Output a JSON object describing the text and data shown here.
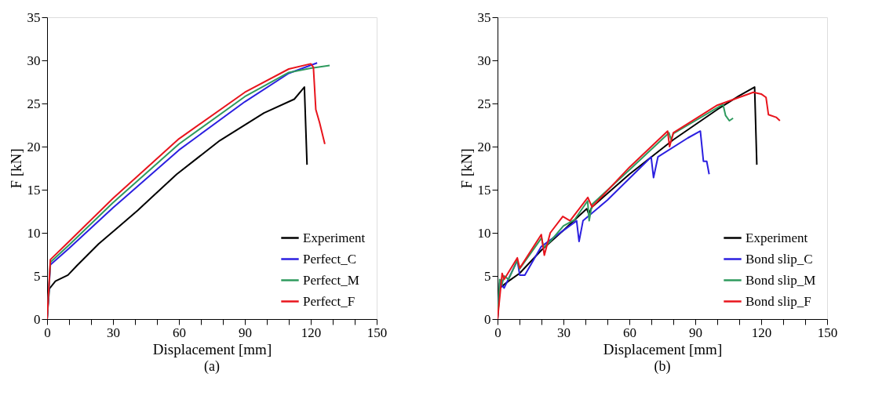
{
  "chart_data": [
    {
      "type": "line",
      "xlabel": "Displacement [mm]",
      "ylabel": "F [kN]",
      "annotations": [
        "(a)"
      ],
      "xlim": [
        0,
        150
      ],
      "ylim": [
        0,
        35
      ],
      "xticks": [
        0,
        {
          "value": 10,
          "label": null
        },
        {
          "value": 20,
          "label": null
        },
        30,
        {
          "value": 40,
          "label": null
        },
        {
          "value": 50,
          "label": null
        },
        60,
        {
          "value": 70,
          "label": null
        },
        {
          "value": 80,
          "label": null
        },
        90,
        {
          "value": 100,
          "label": null
        },
        {
          "value": 110,
          "label": null
        },
        120,
        {
          "value": 130,
          "label": null
        },
        {
          "value": 140,
          "label": null
        },
        150
      ],
      "yticks": [
        0,
        5,
        10,
        15,
        20,
        25,
        30,
        35
      ],
      "grid": false,
      "legend": "bottom right",
      "line_style": "solid",
      "marker": "none",
      "series": [
        {
          "name": "Experiment",
          "color": "#000000",
          "x": [
            0,
            1,
            3.8,
            9.5,
            13.6,
            23.4,
            32.6,
            41.2,
            59,
            78.6,
            98.7,
            112.5,
            117.1,
            118.3
          ],
          "values": [
            0,
            3.5,
            4.4,
            5.1,
            6.2,
            8.7,
            10.7,
            12.6,
            16.8,
            20.7,
            23.9,
            25.5,
            26.9,
            17.9
          ]
        },
        {
          "name": "Perfect_C",
          "color": "#2b1fe0",
          "x": [
            0,
            1.5,
            10,
            30,
            60,
            90,
            110,
            122.9
          ],
          "values": [
            0,
            6.3,
            8.2,
            12.9,
            19.6,
            25.2,
            28.5,
            29.7
          ]
        },
        {
          "name": "Perfect_M",
          "color": "#2e9a5e",
          "x": [
            0,
            1.5,
            10,
            30,
            60,
            90,
            110,
            120,
            128.6
          ],
          "values": [
            0,
            6.6,
            8.6,
            13.5,
            20.3,
            25.8,
            28.6,
            29.1,
            29.4
          ]
        },
        {
          "name": "Perfect_F",
          "color": "#e8141c",
          "x": [
            0,
            1.5,
            10,
            30,
            60,
            90,
            110,
            120,
            121.2,
            122.3,
            124,
            126.4
          ],
          "values": [
            0,
            6.9,
            9.0,
            14.0,
            20.9,
            26.3,
            29.0,
            29.6,
            29.2,
            24.3,
            22.8,
            20.3
          ]
        }
      ]
    },
    {
      "type": "line",
      "xlabel": "Displacement [mm]",
      "ylabel": "F [kN]",
      "annotations": [
        "(b)"
      ],
      "xlim": [
        0,
        150
      ],
      "ylim": [
        0,
        35
      ],
      "xticks": [
        0,
        {
          "value": 10,
          "label": null
        },
        {
          "value": 20,
          "label": null
        },
        30,
        {
          "value": 40,
          "label": null
        },
        {
          "value": 50,
          "label": null
        },
        60,
        {
          "value": 70,
          "label": null
        },
        {
          "value": 80,
          "label": null
        },
        90,
        {
          "value": 100,
          "label": null
        },
        {
          "value": 110,
          "label": null
        },
        120,
        {
          "value": 130,
          "label": null
        },
        {
          "value": 140,
          "label": null
        },
        150
      ],
      "yticks": [
        0,
        5,
        10,
        15,
        20,
        25,
        30,
        35
      ],
      "grid": false,
      "legend": "bottom right",
      "line_style": "solid",
      "marker": "none",
      "series": [
        {
          "name": "Experiment",
          "color": "#000000",
          "x": [
            0,
            1,
            5,
            10,
            20,
            30,
            40.6,
            41.5,
            43,
            60,
            80,
            100,
            110,
            117,
            118
          ],
          "values": [
            0,
            3.6,
            4.4,
            5.3,
            8.0,
            10.3,
            12.8,
            12.2,
            13.0,
            16.8,
            20.8,
            24.3,
            25.9,
            26.9,
            17.9
          ]
        },
        {
          "name": "Bond slip_C",
          "color": "#2b1fe0",
          "x": [
            0,
            1,
            3,
            9,
            10.1,
            12.4,
            19.9,
            36,
            37.1,
            38.9,
            50,
            69.9,
            71,
            73,
            86.6,
            92.3,
            93.7,
            95.2,
            96.3
          ],
          "values": [
            0,
            4.2,
            3.6,
            6.8,
            5.1,
            5.1,
            8.4,
            11.4,
            9.0,
            11.4,
            13.8,
            18.8,
            16.4,
            18.8,
            21.0,
            21.8,
            18.3,
            18.3,
            16.8
          ]
        },
        {
          "name": "Bond slip_M",
          "color": "#2e9a5e",
          "x": [
            0,
            1,
            2,
            3,
            5,
            9,
            10,
            20,
            21,
            24,
            30,
            35,
            41,
            41.7,
            43,
            60,
            78,
            79,
            80,
            90,
            102.6,
            103.8,
            105.5,
            107.2
          ],
          "values": [
            0,
            4.6,
            4.0,
            5.0,
            4.6,
            6.8,
            5.8,
            9.4,
            8.3,
            9.0,
            10.8,
            11.5,
            13.7,
            11.4,
            13.3,
            17.3,
            21.6,
            20.8,
            21.5,
            23.0,
            24.9,
            23.6,
            23.0,
            23.3
          ]
        },
        {
          "name": "Bond slip_F",
          "color": "#e8141c",
          "x": [
            0,
            2.1,
            3,
            9,
            10.1,
            19.9,
            21.3,
            24,
            29.7,
            33,
            41.1,
            43,
            60,
            77.4,
            78.3,
            80,
            100,
            116.4,
            120,
            122.2,
            123.3,
            126.8,
            128.5
          ],
          "values": [
            0,
            5.3,
            4.6,
            7.1,
            5.9,
            9.8,
            7.4,
            10.0,
            11.9,
            11.4,
            14.1,
            13.0,
            17.6,
            21.8,
            20.0,
            21.6,
            24.8,
            26.3,
            26.1,
            25.7,
            23.7,
            23.4,
            23.0
          ]
        }
      ]
    }
  ]
}
